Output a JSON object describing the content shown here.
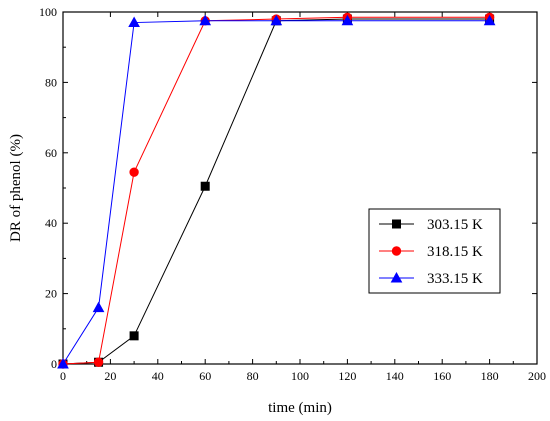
{
  "chart_data": {
    "type": "line",
    "xlabel": "time (min)",
    "ylabel": "DR of phenol (%)",
    "xlim": [
      0,
      200
    ],
    "ylim": [
      0,
      100
    ],
    "x_ticks": [
      0,
      20,
      40,
      60,
      80,
      100,
      120,
      140,
      160,
      180,
      200
    ],
    "y_ticks": [
      0,
      20,
      40,
      60,
      80,
      100
    ],
    "grid": false,
    "legend_position": "center-right",
    "series": [
      {
        "name": "303.15 K",
        "color": "#000000",
        "marker": "square",
        "x": [
          0,
          15,
          30,
          60,
          90,
          120,
          180
        ],
        "y": [
          0,
          0.5,
          8,
          50.5,
          97.5,
          98,
          98
        ]
      },
      {
        "name": "318.15 K",
        "color": "#ff0000",
        "marker": "circle",
        "x": [
          0,
          15,
          30,
          60,
          90,
          120,
          180
        ],
        "y": [
          0,
          0.5,
          54.5,
          97.5,
          98,
          98.5,
          98.5
        ]
      },
      {
        "name": "333.15 K",
        "color": "#0000ff",
        "marker": "triangle",
        "x": [
          0,
          15,
          30,
          60,
          90,
          120,
          180
        ],
        "y": [
          0,
          16,
          97,
          97.5,
          97.5,
          97.5,
          97.5
        ]
      }
    ]
  }
}
